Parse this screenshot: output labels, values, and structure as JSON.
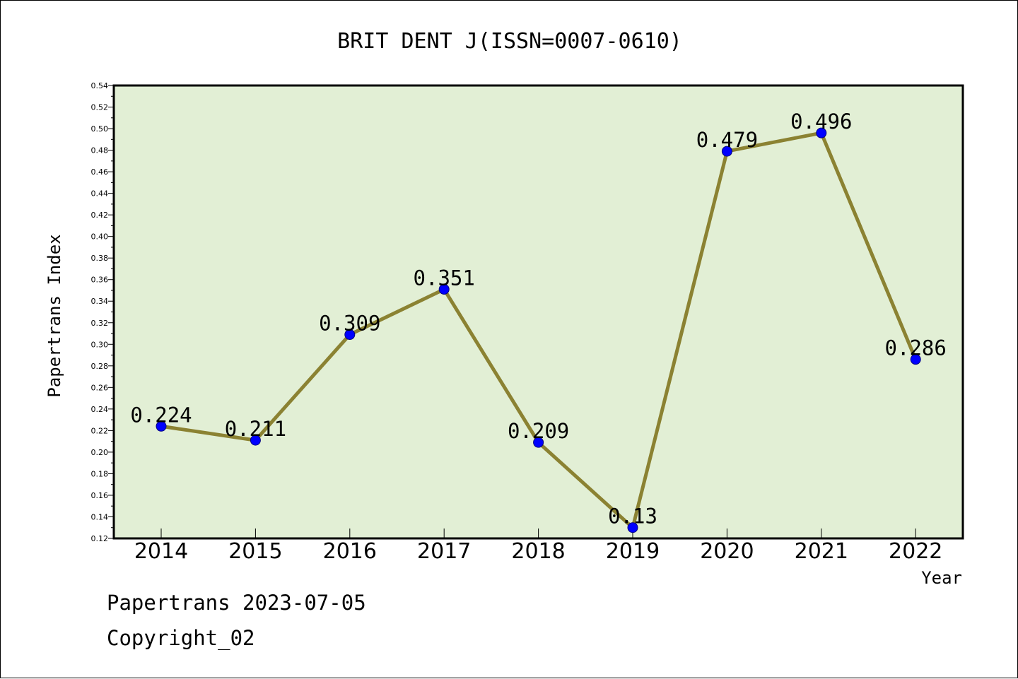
{
  "chart_data": {
    "type": "line",
    "title": "BRIT DENT J(ISSN=0007-0610)",
    "xlabel": "Year",
    "ylabel": "Papertrans Index",
    "categories": [
      "2014",
      "2015",
      "2016",
      "2017",
      "2018",
      "2019",
      "2020",
      "2021",
      "2022"
    ],
    "series": [
      {
        "values": [
          0.224,
          0.211,
          0.309,
          0.351,
          0.209,
          0.13,
          0.479,
          0.496,
          0.286
        ],
        "data_labels": [
          "0.224",
          "0.211",
          "0.309",
          "0.351",
          "0.209",
          "0.13",
          "0.479",
          "0.496",
          "0.286"
        ]
      }
    ],
    "ylim": [
      0.12,
      0.54
    ],
    "yticks": [
      "0.12",
      "0.14",
      "0.16",
      "0.18",
      "0.20",
      "0.22",
      "0.24",
      "0.26",
      "0.28",
      "0.30",
      "0.32",
      "0.34",
      "0.36",
      "0.38",
      "0.40",
      "0.42",
      "0.44",
      "0.46",
      "0.48",
      "0.50",
      "0.52",
      "0.54"
    ],
    "grid": false,
    "colors": {
      "plot_background": "#e2efd5",
      "line": "#8b8232",
      "marker": "#0000ff"
    }
  },
  "footer": {
    "date_line": "Papertrans 2023-07-05",
    "copyright_line": "Copyright_02"
  }
}
